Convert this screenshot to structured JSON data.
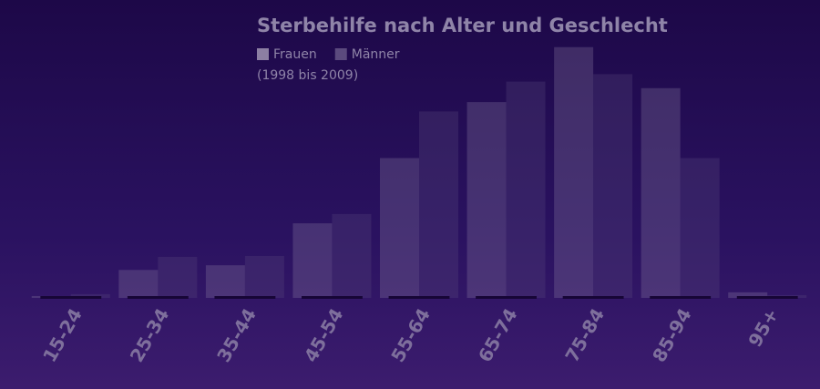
{
  "chart_data": {
    "type": "bar",
    "title": "Sterbehilfe nach Alter und Geschlecht",
    "subtitle": "(1998 bis 2009)",
    "categories": [
      "15-24",
      "25-34",
      "35-44",
      "45-54",
      "55-64",
      "65-74",
      "75-84",
      "85-94",
      "95+"
    ],
    "series": [
      {
        "name": "Frauen",
        "color": "#8c7fa3",
        "values": [
          2,
          30,
          35,
          80,
          150,
          210,
          269,
          225,
          6
        ]
      },
      {
        "name": "Männer",
        "color": "#5b4a7e",
        "values": [
          4,
          44,
          45,
          90,
          200,
          232,
          240,
          150,
          3
        ]
      }
    ],
    "ylim": [
      0,
      300
    ]
  }
}
